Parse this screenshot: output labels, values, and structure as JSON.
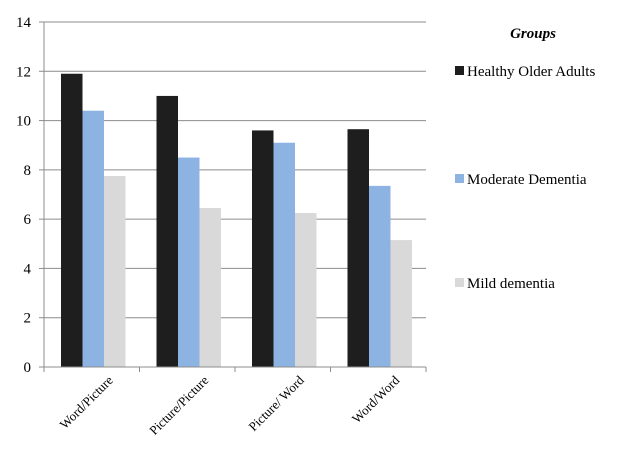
{
  "chart_data": {
    "type": "bar",
    "categories": [
      "Word/Picture",
      "Picture/Picture",
      "Picture/ Word",
      "Word/Word"
    ],
    "series": [
      {
        "name": "Healthy Older Adults",
        "values": [
          11.9,
          11.0,
          9.6,
          9.65
        ],
        "color": "#1e1e1e"
      },
      {
        "name": "Moderate Dementia",
        "values": [
          10.4,
          8.5,
          9.1,
          7.35
        ],
        "color": "#8db3e2"
      },
      {
        "name": "Mild dementia",
        "values": [
          7.75,
          6.45,
          6.25,
          5.15
        ],
        "color": "#d9d9d9"
      }
    ],
    "ylim": [
      0,
      14
    ],
    "yticks": [
      0,
      2,
      4,
      6,
      8,
      10,
      12,
      14
    ],
    "grid": true,
    "legend": {
      "title": "Groups",
      "placement": "right"
    }
  }
}
